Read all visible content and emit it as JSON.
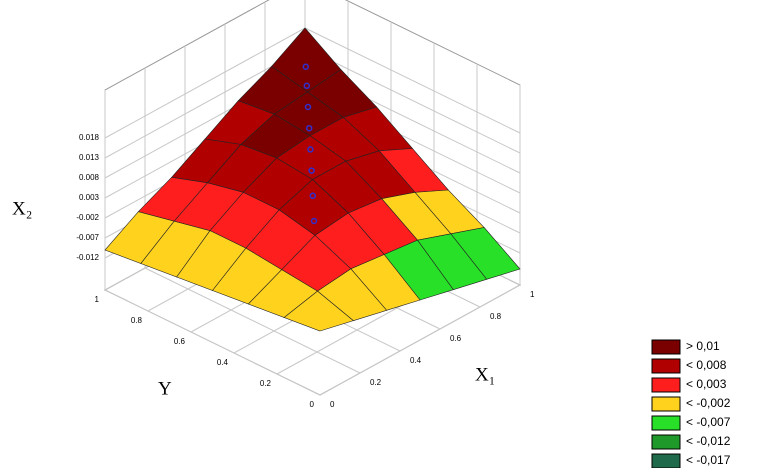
{
  "chart_data": {
    "type": "surface",
    "x_label": "X₁",
    "y_label": "Y",
    "z_label": "X₂",
    "xlim": [
      0,
      1
    ],
    "xticks": [
      0,
      0.2,
      0.4,
      0.6,
      0.8,
      1
    ],
    "ylim": [
      0,
      1
    ],
    "yticks": [
      0,
      0.2,
      0.4,
      0.6,
      0.8,
      1
    ],
    "zlim": [
      -0.02,
      0.03
    ],
    "zticks": [
      -0.012,
      -0.007,
      -0.002,
      0.003,
      0.008,
      0.013,
      0.018
    ],
    "grid": true,
    "x": [
      0,
      0.1667,
      0.3333,
      0.5,
      0.6667,
      0.8333,
      1
    ],
    "y": [
      0,
      0.1667,
      0.3333,
      0.5,
      0.6667,
      0.8333,
      1
    ],
    "z": [
      [
        -0.004,
        -0.006,
        -0.008,
        -0.01,
        -0.012,
        -0.014,
        -0.016
      ],
      [
        -0.005,
        -0.003,
        -0.002,
        -0.003,
        -0.004,
        -0.007,
        -0.01
      ],
      [
        -0.006,
        -0.002,
        0.002,
        0.003,
        0.002,
        -0.001,
        -0.005
      ],
      [
        -0.007,
        -0.001,
        0.004,
        0.007,
        0.007,
        0.005,
        0.001
      ],
      [
        -0.008,
        -0.001,
        0.004,
        0.008,
        0.009,
        0.009,
        0.007
      ],
      [
        -0.009,
        -0.003,
        0.002,
        0.007,
        0.01,
        0.011,
        0.012
      ],
      [
        -0.01,
        -0.005,
        -0.001,
        0.004,
        0.009,
        0.013,
        0.018
      ]
    ],
    "points": {
      "color": "#3030d0",
      "x": [
        0.95,
        0.88,
        0.8,
        0.72,
        0.64,
        0.56,
        0.48,
        0.4
      ],
      "y": [
        0.95,
        0.88,
        0.8,
        0.72,
        0.64,
        0.56,
        0.48,
        0.4
      ],
      "z": [
        0.011,
        0.01,
        0.009,
        0.008,
        0.007,
        0.006,
        0.004,
        0.002
      ]
    },
    "legend": {
      "position": "lower right",
      "levels": [
        {
          "value": 0.01,
          "label": "> 0,01",
          "color": "#7a0000"
        },
        {
          "value": 0.008,
          "label": "< 0,008",
          "color": "#b00000"
        },
        {
          "value": 0.003,
          "label": "< 0,003",
          "color": "#ff1e1e"
        },
        {
          "value": -0.002,
          "label": "< -0,002",
          "color": "#ffd21e"
        },
        {
          "value": -0.007,
          "label": "< -0,007",
          "color": "#28e028"
        },
        {
          "value": -0.012,
          "label": "< -0,012",
          "color": "#1f9a2a"
        },
        {
          "value": -0.017,
          "label": "< -0,017",
          "color": "#1f6a4a"
        }
      ]
    }
  }
}
